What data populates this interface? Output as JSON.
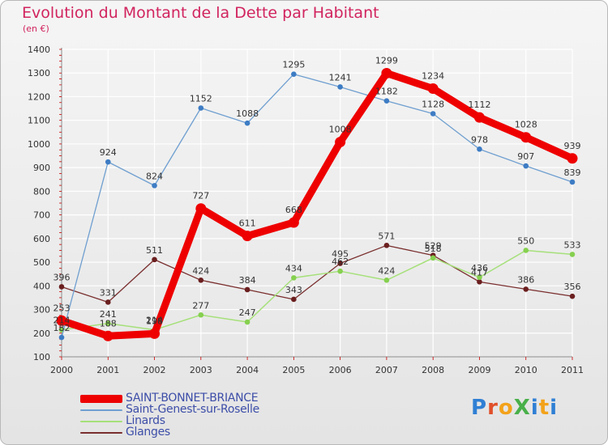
{
  "title": "Evolution du Montant de la Dette par Habitant",
  "subtitle": "(en €)",
  "brand": "ProXiti",
  "colors": {
    "title": "#d1245e",
    "legend_text": "#3d4ea8",
    "axis_text": "#333333",
    "grid": "#ffffff",
    "axis_tick": "#cc0000"
  },
  "chart_data": {
    "type": "line",
    "title": "Evolution du Montant de la Dette par Habitant",
    "subtitle": "(en €)",
    "x": [
      "2000",
      "2001",
      "2002",
      "2003",
      "2004",
      "2005",
      "2006",
      "2007",
      "2008",
      "2009",
      "2010",
      "2011"
    ],
    "ylim": [
      100,
      1400
    ],
    "yticks": [
      100,
      200,
      300,
      400,
      500,
      600,
      700,
      800,
      900,
      1000,
      1100,
      1200,
      1300,
      1400
    ],
    "grid": true,
    "legend_position": "bottom-left",
    "series": [
      {
        "name": "SAINT-BONNET-BRIANCE",
        "values": [
          253,
          188,
          198,
          727,
          611,
          668,
          1008,
          1299,
          1234,
          1112,
          1028,
          939
        ],
        "labels": [
          "253",
          "188",
          "198",
          "727",
          "611",
          "668",
          "1008",
          "1299",
          "1234",
          "1112",
          "1028",
          "939"
        ],
        "color": "#ee0000",
        "line_width": 9,
        "marker_radius": 6.5
      },
      {
        "name": "Saint-Genest-sur-Roselle",
        "values": [
          182,
          924,
          824,
          1152,
          1088,
          1295,
          1241,
          1182,
          1128,
          978,
          907,
          839
        ],
        "labels": [
          "182",
          "924",
          "824",
          "1152",
          "1088",
          "1295",
          "1241",
          "1182",
          "1128",
          "978",
          "907",
          "839"
        ],
        "color": "#6f9fd0",
        "marker_color": "#3d7cc4",
        "line_width": 1.3,
        "marker_radius": 3.3
      },
      {
        "name": "Linards",
        "values": [
          214,
          241,
          214,
          277,
          247,
          434,
          462,
          424,
          518,
          436,
          550,
          533
        ],
        "labels": [
          "214",
          "241",
          "214",
          "277",
          "247",
          "434",
          "462",
          "424",
          "518",
          "436",
          "550",
          "533"
        ],
        "color": "#a6e07a",
        "marker_color": "#86d04f",
        "line_width": 1.5,
        "marker_radius": 3.3
      },
      {
        "name": "Glanges",
        "values": [
          396,
          331,
          511,
          424,
          384,
          343,
          495,
          571,
          529,
          417,
          386,
          356
        ],
        "labels": [
          "396",
          "331",
          "511",
          "424",
          "384",
          "343",
          "495",
          "571",
          "529",
          "417",
          "386",
          "356"
        ],
        "color": "#7a2e2e",
        "marker_color": "#6b1f1f",
        "line_width": 1.3,
        "marker_radius": 3.3
      }
    ]
  }
}
